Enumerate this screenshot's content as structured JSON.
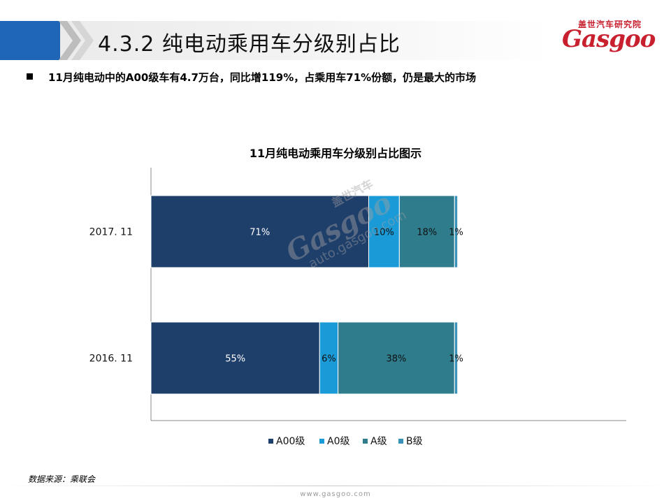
{
  "header": {
    "title": "4.3.2 纯电动乘用车分级别占比",
    "logo_cn": "盖世汽车研究院",
    "logo_en": "Gasgoo"
  },
  "bullet": "11月纯电动中的A00级车有4.7万台，同比增119%，占乘用车71%份额，仍是最大的市场",
  "watermark": {
    "cn": "盖世汽车",
    "en": "Gasgoo",
    "url": "auto.gasgoo.com"
  },
  "source": "数据来源：乘联会",
  "footer_url": "www.gasgoo.com",
  "colors": {
    "A00": "#1f3f6b",
    "A0": "#1a9ad6",
    "A": "#2e7c8c",
    "B": "#3a91b8",
    "title_tab": "#1f66b8",
    "logo_red": "#c8202f"
  },
  "chart_data": {
    "type": "bar",
    "orientation": "horizontal",
    "stacked": true,
    "title": "11月纯电动乘用车分级别占比图示",
    "categories": [
      "2017. 11",
      "2016. 11"
    ],
    "series": [
      {
        "name": "A00级",
        "values": [
          71,
          55
        ],
        "labels": [
          "71%",
          "55%"
        ],
        "color": "#1f3f6b"
      },
      {
        "name": "A0级",
        "values": [
          10,
          6
        ],
        "labels": [
          "10%",
          "6%"
        ],
        "color": "#1a9ad6"
      },
      {
        "name": "A级",
        "values": [
          18,
          38
        ],
        "labels": [
          "18%",
          "38%"
        ],
        "color": "#2e7c8c"
      },
      {
        "name": "B级",
        "values": [
          1,
          1
        ],
        "labels": [
          "1%",
          "1%"
        ],
        "color": "#3a91b8"
      }
    ],
    "xlim": [
      0,
      155
    ],
    "legend": "bottom",
    "grid": false
  }
}
